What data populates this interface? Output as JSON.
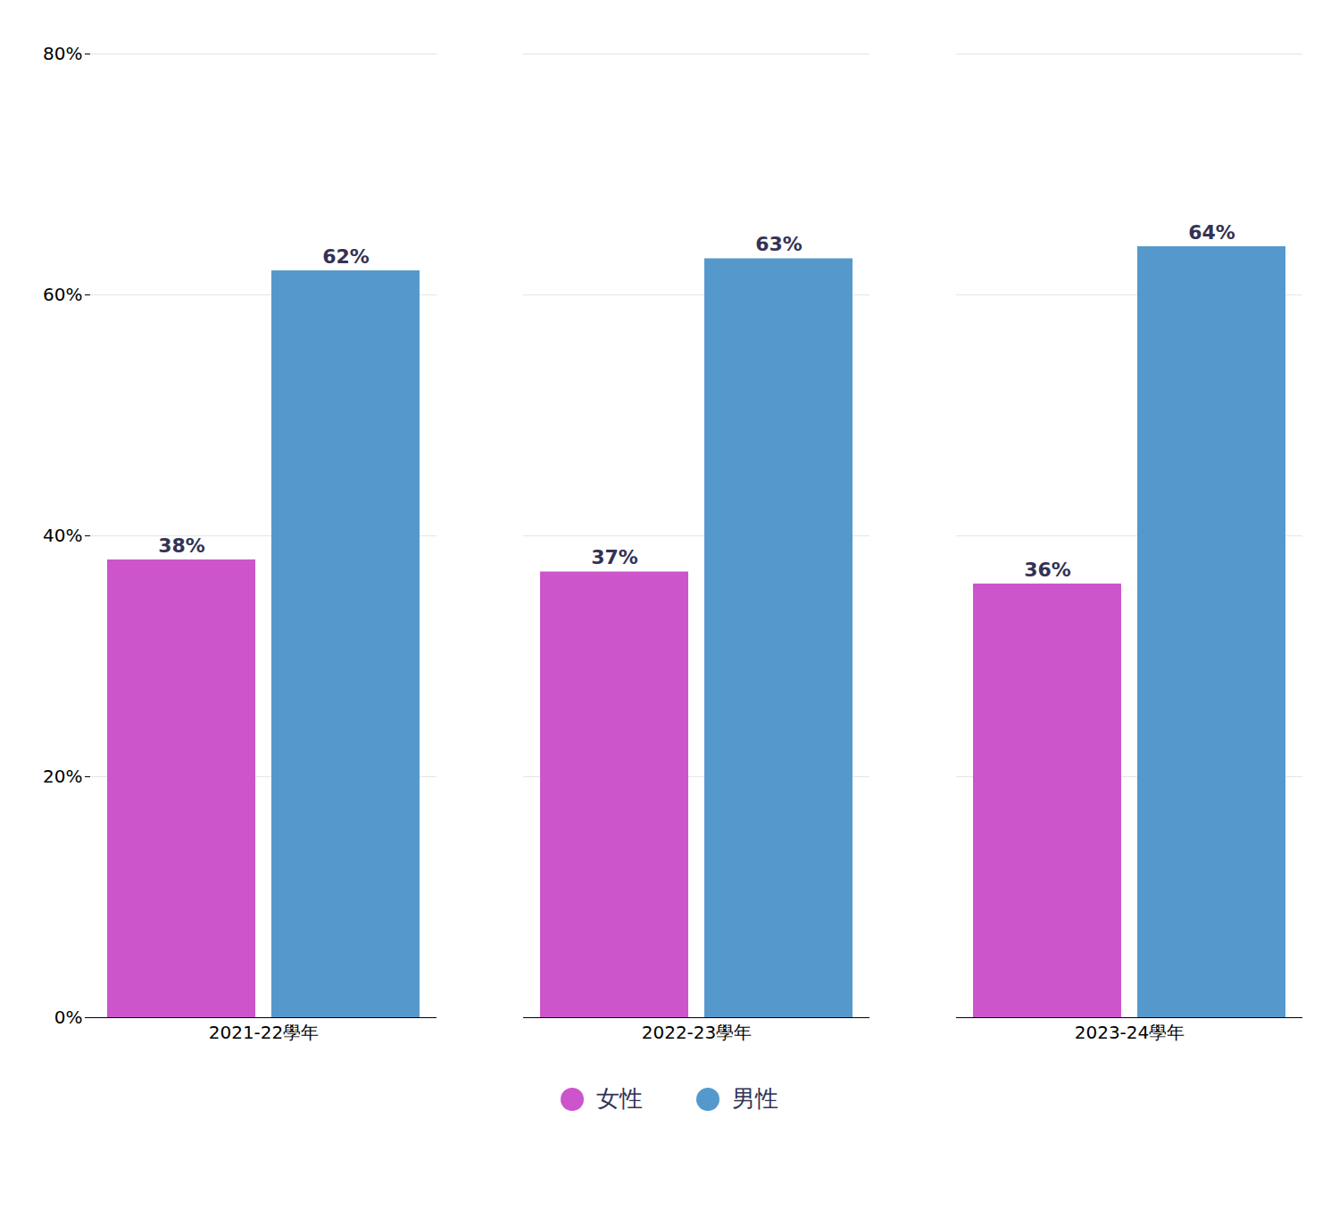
{
  "chart_data": {
    "type": "bar",
    "categories": [
      "2021-22學年",
      "2022-23學年",
      "2023-24學年"
    ],
    "series": [
      {
        "name": "女性",
        "color": "#cc55cc",
        "values": [
          38,
          37,
          36
        ],
        "value_labels": [
          "38%",
          "37%",
          "36%"
        ]
      },
      {
        "name": "男性",
        "color": "#5599cc",
        "values": [
          62,
          63,
          64
        ],
        "value_labels": [
          "62%",
          "63%",
          "64%"
        ]
      }
    ],
    "ylim": [
      0,
      80
    ],
    "yticks": [
      {
        "value": 0,
        "label": "0%"
      },
      {
        "value": 20,
        "label": "20%"
      },
      {
        "value": 40,
        "label": "40%"
      },
      {
        "value": 60,
        "label": "60%"
      },
      {
        "value": 80,
        "label": "80%"
      }
    ],
    "grid": true,
    "legend": "bottom",
    "data_labels": true
  }
}
